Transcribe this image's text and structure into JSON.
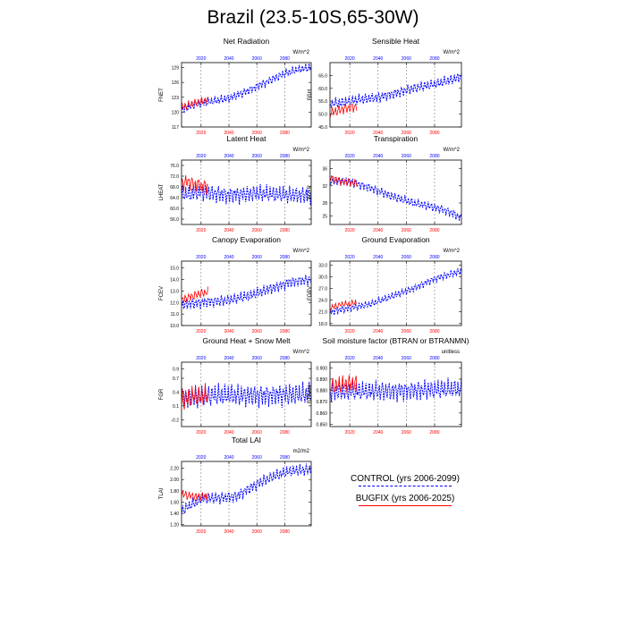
{
  "title": "Brazil (23.5-10S,65-30W)",
  "legend": {
    "control_label": "CONTROL (yrs 2006-2099)",
    "bugfix_label": "BUGFIX (yrs 2006-2025)"
  },
  "colors": {
    "control": "#0000ff",
    "bugfix": "#ff0000",
    "grid": "#808080"
  },
  "chart_data": [
    {
      "type": "line",
      "title": "Net Radiation",
      "units": "W/m^2",
      "ylabel": "FNET",
      "ylim": [
        117,
        130
      ],
      "yticks": [
        117,
        120,
        123,
        126,
        129
      ],
      "ytick_labels": [
        "117",
        "120",
        "123",
        "126",
        "129"
      ],
      "xticks": [
        2020,
        2040,
        2060,
        2080
      ],
      "xlim": [
        2006,
        2099
      ],
      "series": [
        {
          "name": "CONTROL",
          "x": [
            2006,
            2015,
            2025,
            2040,
            2055,
            2065,
            2080,
            2090,
            2099
          ],
          "values": [
            120.5,
            121.5,
            122.0,
            122.8,
            124.5,
            125.8,
            127.8,
            128.6,
            129.0
          ],
          "amp": 1.1
        },
        {
          "name": "BUGFIX",
          "x": [
            2006,
            2010,
            2015,
            2020,
            2025
          ],
          "values": [
            121.0,
            121.3,
            121.8,
            122.2,
            122.5
          ],
          "amp": 1.0
        }
      ]
    },
    {
      "type": "line",
      "title": "Sensible Heat",
      "units": "W/m^2",
      "ylabel": "FSH",
      "ylim": [
        45,
        70
      ],
      "yticks": [
        45,
        50,
        55,
        60,
        65
      ],
      "ytick_labels": [
        "45.0",
        "50.0",
        "55.0",
        "60.0",
        "65.0"
      ],
      "xticks": [
        2020,
        2040,
        2060,
        2080
      ],
      "xlim": [
        2006,
        2099
      ],
      "series": [
        {
          "name": "CONTROL",
          "x": [
            2006,
            2015,
            2025,
            2040,
            2055,
            2065,
            2080,
            2090,
            2099
          ],
          "values": [
            54.0,
            54.5,
            55.5,
            56.5,
            58.5,
            60.0,
            61.5,
            63.0,
            64.5
          ],
          "amp": 2.5
        },
        {
          "name": "BUGFIX",
          "x": [
            2006,
            2010,
            2015,
            2020,
            2025
          ],
          "values": [
            50.5,
            51.0,
            52.0,
            52.5,
            53.0
          ],
          "amp": 2.5
        }
      ]
    },
    {
      "type": "line",
      "title": "Latent Heat",
      "units": "W/m^2",
      "ylabel": "LHEAT",
      "ylim": [
        54,
        78
      ],
      "yticks": [
        56,
        60,
        64,
        68,
        72,
        76
      ],
      "ytick_labels": [
        "56.0",
        "60.0",
        "64.0",
        "68.0",
        "72.0",
        "76.0"
      ],
      "xticks": [
        2020,
        2040,
        2060,
        2080
      ],
      "xlim": [
        2006,
        2099
      ],
      "series": [
        {
          "name": "CONTROL",
          "x": [
            2006,
            2020,
            2040,
            2060,
            2080,
            2099
          ],
          "values": [
            65.0,
            66.0,
            65.0,
            65.5,
            65.0,
            65.0
          ],
          "amp": 4.0
        },
        {
          "name": "BUGFIX",
          "x": [
            2006,
            2010,
            2015,
            2020,
            2025
          ],
          "values": [
            69.0,
            70.0,
            69.0,
            68.5,
            68.0
          ],
          "amp": 3.5
        }
      ]
    },
    {
      "type": "line",
      "title": "Transpiration",
      "units": "W/m^2",
      "ylabel": "FCTR",
      "ylim": [
        23,
        38
      ],
      "yticks": [
        25,
        28,
        32,
        36
      ],
      "ytick_labels": [
        "25",
        "28",
        "32",
        "36"
      ],
      "xticks": [
        2020,
        2040,
        2060,
        2080
      ],
      "xlim": [
        2006,
        2099
      ],
      "series": [
        {
          "name": "CONTROL",
          "x": [
            2006,
            2020,
            2035,
            2050,
            2065,
            2080,
            2090,
            2099
          ],
          "values": [
            33.0,
            33.0,
            31.5,
            29.5,
            28.0,
            27.0,
            26.0,
            24.5
          ],
          "amp": 1.3
        },
        {
          "name": "BUGFIX",
          "x": [
            2006,
            2010,
            2015,
            2020,
            2025
          ],
          "values": [
            34.0,
            33.5,
            33.0,
            32.8,
            32.5
          ],
          "amp": 1.2
        }
      ]
    },
    {
      "type": "line",
      "title": "Canopy Evaporation",
      "units": "W/m^2",
      "ylabel": "FCEV",
      "ylim": [
        10,
        15.6
      ],
      "yticks": [
        10,
        11,
        12,
        13,
        14,
        15
      ],
      "ytick_labels": [
        "10.0",
        "11.0",
        "12.0",
        "13.0",
        "14.0",
        "15.0"
      ],
      "xticks": [
        2020,
        2040,
        2060,
        2080
      ],
      "xlim": [
        2006,
        2099
      ],
      "series": [
        {
          "name": "CONTROL",
          "x": [
            2006,
            2020,
            2040,
            2055,
            2070,
            2085,
            2099
          ],
          "values": [
            11.8,
            12.0,
            12.2,
            12.6,
            13.2,
            13.8,
            14.0
          ],
          "amp": 0.6
        },
        {
          "name": "BUGFIX",
          "x": [
            2006,
            2010,
            2015,
            2020,
            2025
          ],
          "values": [
            12.2,
            12.4,
            12.6,
            12.8,
            12.9
          ],
          "amp": 0.5
        }
      ]
    },
    {
      "type": "line",
      "title": "Ground Evaporation",
      "units": "W/m^2",
      "ylabel": "FGEV",
      "ylim": [
        17.5,
        34
      ],
      "yticks": [
        18,
        21,
        24,
        27,
        30,
        33
      ],
      "ytick_labels": [
        "18.0",
        "21.0",
        "24.0",
        "27.0",
        "30.0",
        "33.0"
      ],
      "xticks": [
        2020,
        2040,
        2060,
        2080
      ],
      "xlim": [
        2006,
        2099
      ],
      "series": [
        {
          "name": "CONTROL",
          "x": [
            2006,
            2020,
            2035,
            2050,
            2065,
            2080,
            2090,
            2099
          ],
          "values": [
            21.0,
            22.0,
            23.0,
            25.0,
            27.0,
            29.5,
            30.5,
            31.5
          ],
          "amp": 1.2
        },
        {
          "name": "BUGFIX",
          "x": [
            2006,
            2010,
            2015,
            2020,
            2025
          ],
          "values": [
            22.0,
            22.5,
            23.0,
            23.0,
            23.5
          ],
          "amp": 1.0
        }
      ]
    },
    {
      "type": "line",
      "title": "Ground Heat + Snow Melt",
      "units": "W/m^2",
      "ylabel": "FGR",
      "ylim": [
        -0.35,
        1.05
      ],
      "yticks": [
        -0.2,
        0.1,
        0.4,
        0.7,
        0.9
      ],
      "ytick_labels": [
        "-0.2",
        "0.1",
        "0.4",
        "0.7",
        "0.9"
      ],
      "xticks": [
        2020,
        2040,
        2060,
        2080
      ],
      "xlim": [
        2006,
        2099
      ],
      "series": [
        {
          "name": "CONTROL",
          "x": [
            2006,
            2030,
            2060,
            2099
          ],
          "values": [
            0.3,
            0.32,
            0.33,
            0.35
          ],
          "amp": 0.3
        },
        {
          "name": "BUGFIX",
          "x": [
            2006,
            2010,
            2015,
            2020,
            2025
          ],
          "values": [
            0.2,
            0.25,
            0.3,
            0.3,
            0.32
          ],
          "amp": 0.3
        }
      ]
    },
    {
      "type": "line",
      "title": "Soil moisture factor (BTRAN or BTRANMN)",
      "units": "unitless",
      "ylabel": "BTRAN",
      "ylim": [
        0.848,
        0.905
      ],
      "yticks": [
        0.85,
        0.86,
        0.87,
        0.88,
        0.89,
        0.9
      ],
      "ytick_labels": [
        "0.850",
        "0.860",
        "0.870",
        "0.880",
        "0.890",
        "0.900"
      ],
      "xticks": [
        2020,
        2040,
        2060,
        2080
      ],
      "xlim": [
        2006,
        2099
      ],
      "series": [
        {
          "name": "CONTROL",
          "x": [
            2006,
            2030,
            2060,
            2099
          ],
          "values": [
            0.879,
            0.879,
            0.88,
            0.881
          ],
          "amp": 0.011
        },
        {
          "name": "BUGFIX",
          "x": [
            2006,
            2010,
            2015,
            2020,
            2025
          ],
          "values": [
            0.883,
            0.884,
            0.885,
            0.886,
            0.886
          ],
          "amp": 0.01
        }
      ]
    },
    {
      "type": "line",
      "title": "Total LAI",
      "units": "m2/m2",
      "ylabel": "TLAI",
      "ylim": [
        1.18,
        2.32
      ],
      "yticks": [
        1.2,
        1.4,
        1.6,
        1.8,
        2.0,
        2.2
      ],
      "ytick_labels": [
        "1.20",
        "1.40",
        "1.60",
        "1.80",
        "2.00",
        "2.20"
      ],
      "xticks": [
        2020,
        2040,
        2060,
        2080
      ],
      "xlim": [
        2006,
        2099
      ],
      "series": [
        {
          "name": "CONTROL",
          "x": [
            2006,
            2020,
            2035,
            2045,
            2055,
            2065,
            2075,
            2085,
            2099
          ],
          "values": [
            1.45,
            1.65,
            1.68,
            1.7,
            1.85,
            1.98,
            2.08,
            2.15,
            2.18
          ],
          "amp": 0.13
        },
        {
          "name": "BUGFIX",
          "x": [
            2006,
            2010,
            2015,
            2020,
            2025
          ],
          "values": [
            1.75,
            1.72,
            1.7,
            1.7,
            1.72
          ],
          "amp": 0.1
        }
      ]
    }
  ]
}
